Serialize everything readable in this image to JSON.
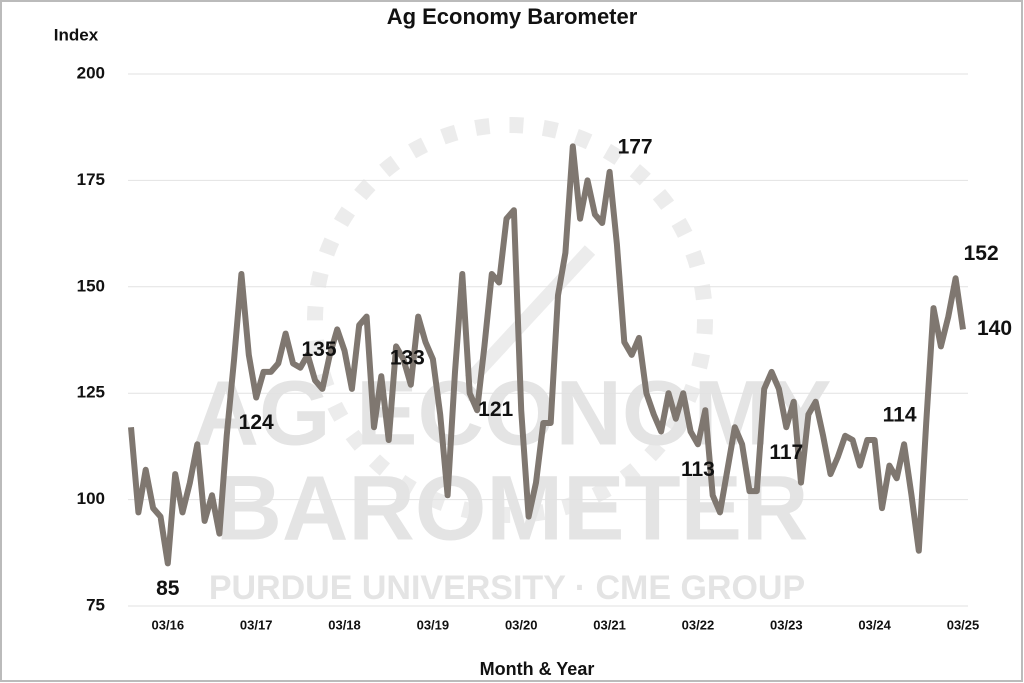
{
  "chart_data": {
    "type": "line",
    "title": "Ag Economy Barometer",
    "y_label": "Index",
    "x_label": "Month & Year",
    "watermark": [
      "AG ECONOMY",
      "BAROMETER",
      "PURDUE UNIVERSITY · CME GROUP"
    ],
    "categories": [
      null,
      null,
      null,
      null,
      null,
      "03/16",
      null,
      null,
      null,
      null,
      null,
      null,
      null,
      null,
      null,
      null,
      null,
      "03/17",
      null,
      null,
      null,
      null,
      null,
      null,
      null,
      null,
      null,
      null,
      null,
      "03/18",
      null,
      null,
      null,
      null,
      null,
      null,
      null,
      null,
      null,
      null,
      null,
      "03/19",
      null,
      null,
      null,
      null,
      null,
      null,
      null,
      null,
      null,
      null,
      null,
      "03/20",
      null,
      null,
      null,
      null,
      null,
      null,
      null,
      null,
      null,
      null,
      null,
      "03/21",
      null,
      null,
      null,
      null,
      null,
      null,
      null,
      null,
      null,
      null,
      null,
      "03/22",
      null,
      null,
      null,
      null,
      null,
      null,
      null,
      null,
      null,
      null,
      null,
      "03/23",
      null,
      null,
      null,
      null,
      null,
      null,
      null,
      null,
      null,
      null,
      null,
      "03/24",
      null,
      null,
      null,
      null,
      null,
      null,
      null,
      null,
      null,
      null,
      null,
      "03/25"
    ],
    "values": [
      117,
      97,
      107,
      98,
      96,
      85,
      106,
      97,
      104,
      113,
      95,
      101,
      92,
      115,
      133,
      153,
      134,
      124,
      130,
      130,
      132,
      139,
      132,
      131,
      134,
      128,
      126,
      134,
      140,
      135,
      126,
      141,
      143,
      117,
      129,
      114,
      136,
      133,
      127,
      143,
      137,
      133,
      120,
      101,
      130,
      153,
      125,
      121,
      136,
      153,
      151,
      166,
      168,
      121,
      96,
      104,
      118,
      118,
      148,
      158,
      183,
      166,
      175,
      167,
      165,
      177,
      160,
      137,
      134,
      138,
      125,
      120,
      116,
      125,
      119,
      125,
      116,
      113,
      121,
      101,
      97,
      107,
      117,
      113,
      102,
      102,
      126,
      130,
      126,
      117,
      123,
      104,
      120,
      123,
      115,
      106,
      110,
      115,
      114,
      108,
      114,
      114,
      98,
      108,
      105,
      113,
      101,
      88,
      118,
      145,
      136,
      143,
      152,
      140
    ],
    "value_labels": [
      null,
      null,
      null,
      null,
      null,
      "85",
      null,
      null,
      null,
      null,
      null,
      null,
      null,
      null,
      null,
      null,
      null,
      "124",
      null,
      null,
      null,
      null,
      null,
      null,
      null,
      null,
      null,
      null,
      null,
      "135",
      null,
      null,
      null,
      null,
      null,
      null,
      null,
      null,
      null,
      null,
      null,
      "133",
      null,
      null,
      null,
      null,
      null,
      null,
      null,
      null,
      null,
      null,
      null,
      "121",
      null,
      null,
      null,
      null,
      null,
      null,
      null,
      null,
      null,
      null,
      null,
      "177",
      null,
      null,
      null,
      null,
      null,
      null,
      null,
      null,
      null,
      null,
      null,
      "113",
      null,
      null,
      null,
      null,
      null,
      null,
      null,
      null,
      null,
      null,
      null,
      "117",
      null,
      null,
      null,
      null,
      null,
      null,
      null,
      null,
      null,
      null,
      null,
      "114",
      null,
      null,
      null,
      null,
      null,
      null,
      null,
      null,
      null,
      null,
      "152",
      "140"
    ],
    "color": "#7f7770",
    "ylim": [
      75,
      200
    ],
    "yticks": [
      75,
      100,
      125,
      150,
      175,
      200
    ],
    "grid": true
  }
}
